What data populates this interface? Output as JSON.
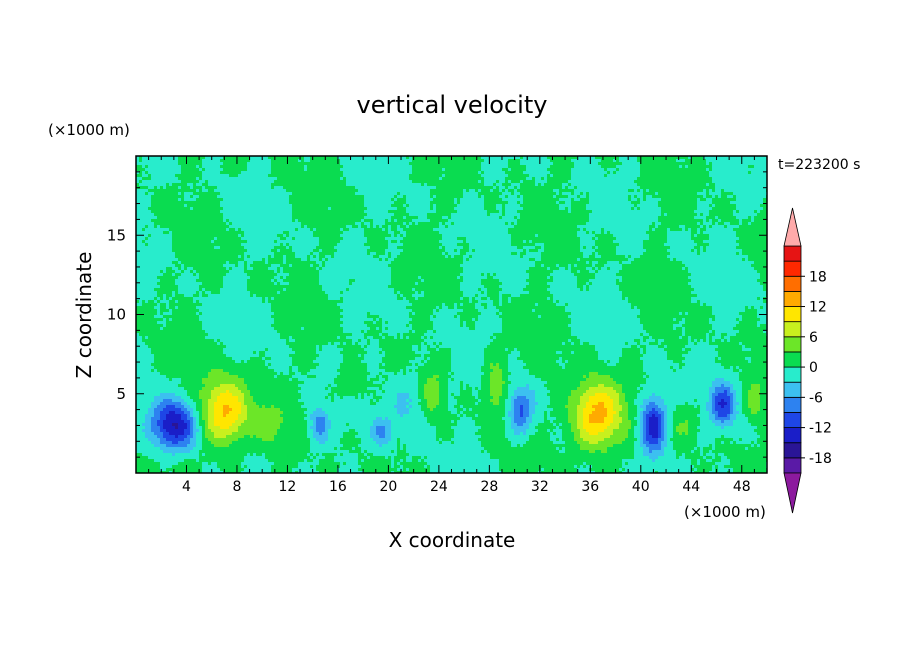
{
  "chart_data": {
    "type": "heatmap",
    "title": "vertical velocity",
    "xlabel": "X coordinate",
    "ylabel": "Z coordinate",
    "x_unit_label": "(×1000 m)",
    "y_unit_label": "(×1000 m)",
    "time_label": "t=223200 s",
    "xlim": [
      0,
      50
    ],
    "ylim": [
      0,
      20
    ],
    "x_ticks": [
      4,
      8,
      12,
      16,
      20,
      24,
      28,
      32,
      36,
      40,
      44,
      48
    ],
    "x_tick_labels": [
      "4",
      "8",
      "12",
      "16",
      "20",
      "24",
      "28",
      "32",
      "36",
      "40",
      "44",
      "48"
    ],
    "y_ticks": [
      5,
      10,
      15
    ],
    "y_tick_labels": [
      "5",
      "10",
      "15"
    ],
    "colorbar": {
      "levels": [
        -21,
        -18,
        -15,
        -12,
        -9,
        -6,
        -3,
        0,
        3,
        6,
        9,
        12,
        15,
        18,
        21
      ],
      "label_values": [
        "18",
        "12",
        "6",
        "0",
        "-6",
        "-12",
        "-18"
      ],
      "colors": [
        "#5a1aa6",
        "#2a1596",
        "#1a1ec8",
        "#1e46e6",
        "#2d82f0",
        "#3cc0f0",
        "#28eccc",
        "#0adc50",
        "#6ce628",
        "#c8f01e",
        "#ffe600",
        "#ffaa00",
        "#ff6e00",
        "#ff2800",
        "#e61414"
      ],
      "under_color": "#8c1a9e",
      "over_color": "#ffaaaa"
    },
    "cells": [
      {
        "x": 3,
        "z": 3.0,
        "sx": 1.8,
        "sz": 1.6,
        "w": -16
      },
      {
        "x": 7,
        "z": 3.8,
        "sx": 2.0,
        "sz": 2.1,
        "w": 13
      },
      {
        "x": 10.5,
        "z": 3.0,
        "sx": 1.2,
        "sz": 1.2,
        "w": 4
      },
      {
        "x": 14.5,
        "z": 3.0,
        "sx": 0.8,
        "sz": 1.2,
        "w": -8
      },
      {
        "x": 17,
        "z": 5.5,
        "sx": 1.0,
        "sz": 1.0,
        "w": 4
      },
      {
        "x": 19.5,
        "z": 2.5,
        "sx": 0.8,
        "sz": 0.9,
        "w": -6
      },
      {
        "x": 21.5,
        "z": 4.5,
        "sx": 1.5,
        "sz": 2.0,
        "w": -4
      },
      {
        "x": 23.5,
        "z": 5.0,
        "sx": 0.8,
        "sz": 1.4,
        "w": 5
      },
      {
        "x": 28.5,
        "z": 5.5,
        "sx": 0.9,
        "sz": 1.8,
        "w": 6
      },
      {
        "x": 30.5,
        "z": 4.0,
        "sx": 1.0,
        "sz": 1.5,
        "w": -10
      },
      {
        "x": 36.5,
        "z": 3.6,
        "sx": 2.0,
        "sz": 2.1,
        "w": 14
      },
      {
        "x": 41,
        "z": 3.0,
        "sx": 1.1,
        "sz": 1.8,
        "w": -15
      },
      {
        "x": 43.5,
        "z": 3.0,
        "sx": 1.2,
        "sz": 1.2,
        "w": 3
      },
      {
        "x": 46.5,
        "z": 4.3,
        "sx": 1.0,
        "sz": 1.3,
        "w": -11
      },
      {
        "x": 49,
        "z": 4.5,
        "sx": 0.8,
        "sz": 1.2,
        "w": 4
      }
    ]
  }
}
